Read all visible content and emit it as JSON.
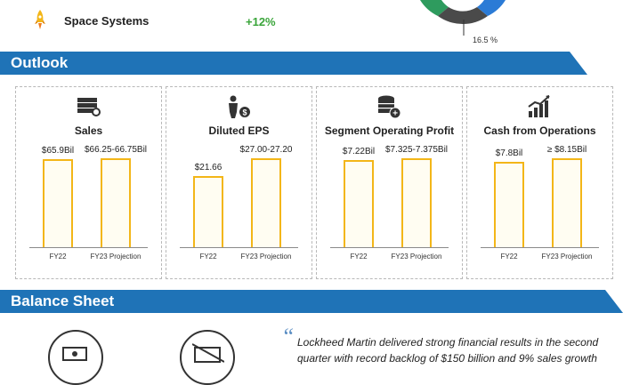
{
  "segments": {
    "space_systems": {
      "name": "Space Systems",
      "growth": "+12%",
      "icon": "rocket-icon"
    },
    "donut_label": "16.5 %"
  },
  "sections": {
    "outlook": "Outlook",
    "balance_sheet": "Balance Sheet"
  },
  "colors": {
    "banner": "#1f73b7",
    "bar_border": "#f3b618",
    "growth": "#3aa53a",
    "donut": [
      "#2e9b5e",
      "#4a4a4a",
      "#2b7bd6"
    ]
  },
  "chart_data": [
    {
      "type": "bar",
      "title": "Sales",
      "icon": "money-stack-icon",
      "categories": [
        "FY22",
        "FY23 Projection"
      ],
      "values": [
        65.9,
        66.5
      ],
      "data_labels": [
        "$65.9Bil",
        "$66.25-66.75Bil"
      ]
    },
    {
      "type": "bar",
      "title": "Diluted EPS",
      "icon": "person-dollar-icon",
      "categories": [
        "FY22",
        "FY23 Projection"
      ],
      "values": [
        21.66,
        27.1
      ],
      "data_labels": [
        "$21.66",
        "$27.00-27.20"
      ]
    },
    {
      "type": "bar",
      "title": "Segment Operating Profit",
      "icon": "coin-stack-icon",
      "categories": [
        "FY22",
        "FY23 Projection"
      ],
      "values": [
        7.22,
        7.35
      ],
      "data_labels": [
        "$7.22Bil",
        "$7.325-7.375Bil"
      ]
    },
    {
      "type": "bar",
      "title": "Cash from Operations",
      "icon": "growth-chart-icon",
      "categories": [
        "FY22",
        "FY23 Projection"
      ],
      "values": [
        7.8,
        8.15
      ],
      "data_labels": [
        "$7.8Bil",
        "≥ $8.15Bil"
      ]
    }
  ],
  "quote": {
    "line1": "Lockheed Martin delivered strong financial results in the second",
    "line2": "quarter with record backlog of $150 billion and 9% sales growth"
  }
}
